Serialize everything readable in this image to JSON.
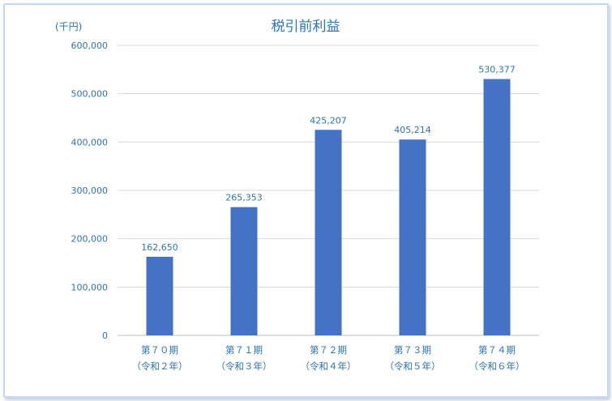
{
  "chart_data": {
    "type": "bar",
    "title": "税引前利益",
    "unit_label": "(千円)",
    "categories": [
      {
        "line1": "第７０期",
        "line2": "（令和２年）"
      },
      {
        "line1": "第７１期",
        "line2": "（令和３年）"
      },
      {
        "line1": "第７２期",
        "line2": "（令和４年）"
      },
      {
        "line1": "第７３期",
        "line2": "（令和５年）"
      },
      {
        "line1": "第７４期",
        "line2": "（令和６年）"
      }
    ],
    "values": [
      162650,
      265353,
      425207,
      405214,
      530377
    ],
    "value_labels": [
      "162,650",
      "265,353",
      "425,207",
      "405,214",
      "530,377"
    ],
    "ylim": [
      0,
      600000
    ],
    "yticks": [
      {
        "value": 0,
        "label": "0"
      },
      {
        "value": 100000,
        "label": "100,000"
      },
      {
        "value": 200000,
        "label": "200,000"
      },
      {
        "value": 300000,
        "label": "300,000"
      },
      {
        "value": 400000,
        "label": "400,000"
      },
      {
        "value": 500000,
        "label": "500,000"
      },
      {
        "value": 600000,
        "label": "600,000"
      }
    ],
    "grid": true,
    "legend": "none",
    "colors": {
      "bar": "#4472c4",
      "text": "#2e74b5"
    }
  }
}
